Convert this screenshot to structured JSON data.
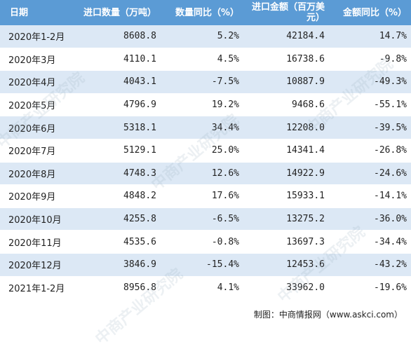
{
  "table": {
    "headers": [
      "日期",
      "进口数量（万吨）",
      "数量同比（%）",
      "进口金额（百万美元）",
      "金额同比（%）"
    ],
    "rows": [
      [
        "2020年1-2月",
        "8608.8",
        "5.2%",
        "42184.4",
        "14.7%"
      ],
      [
        "2020年3月",
        "4110.1",
        "4.5%",
        "16738.6",
        "-9.8%"
      ],
      [
        "2020年4月",
        "4043.1",
        "-7.5%",
        "10887.9",
        "-49.3%"
      ],
      [
        "2020年5月",
        "4796.9",
        "19.2%",
        "9468.6",
        "-55.1%"
      ],
      [
        "2020年6月",
        "5318.1",
        "34.4%",
        "12208.0",
        "-39.5%"
      ],
      [
        "2020年7月",
        "5129.1",
        "25.0%",
        "14341.4",
        "-26.8%"
      ],
      [
        "2020年8月",
        "4748.3",
        "12.6%",
        "14922.9",
        "-24.6%"
      ],
      [
        "2020年9月",
        "4848.2",
        "17.6%",
        "15933.1",
        "-14.1%"
      ],
      [
        "2020年10月",
        "4255.8",
        "-6.5%",
        "13275.2",
        "-36.0%"
      ],
      [
        "2020年11月",
        "4535.6",
        "-0.8%",
        "13697.3",
        "-34.4%"
      ],
      [
        "2020年12月",
        "3846.9",
        "-15.4%",
        "12453.6",
        "-43.2%"
      ],
      [
        "2021年1-2月",
        "8956.8",
        "4.1%",
        "33962.0",
        "-19.6%"
      ]
    ]
  },
  "footer": {
    "source": "制图：中商情报网（www.askci.com）"
  },
  "watermark": "中商产业研究院",
  "colors": {
    "header_bg": "#5b9bd5",
    "stripe_bg": "#dce8f5"
  }
}
